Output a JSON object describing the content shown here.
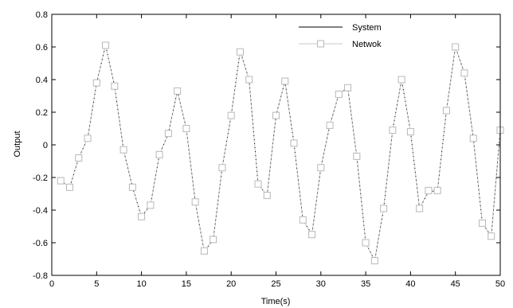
{
  "chart_data": {
    "type": "line",
    "xlabel": "Time(s)",
    "ylabel": "Output",
    "xlim": [
      0,
      50
    ],
    "ylim": [
      -0.8,
      0.8
    ],
    "xticks": [
      "0",
      "5",
      "10",
      "15",
      "20",
      "25",
      "30",
      "35",
      "40",
      "45",
      "50"
    ],
    "yticks": [
      "-0.8",
      "-0.6",
      "-0.4",
      "-0.2",
      "0",
      "0.2",
      "0.4",
      "0.6",
      "0.8"
    ],
    "grid": false,
    "legend_position": "top-right",
    "legend": [
      "System",
      "Netwok"
    ],
    "colors": {
      "system": "#000000",
      "network": "#c8c8c8",
      "marker": "#b8b8b8"
    },
    "x": [
      1,
      2,
      3,
      4,
      5,
      6,
      7,
      8,
      9,
      10,
      11,
      12,
      13,
      14,
      15,
      16,
      17,
      18,
      19,
      20,
      21,
      22,
      23,
      24,
      25,
      26,
      27,
      28,
      29,
      30,
      31,
      32,
      33,
      34,
      35,
      36,
      37,
      38,
      39,
      40,
      41,
      42,
      43,
      44,
      45,
      46,
      47,
      48,
      49,
      50
    ],
    "series": [
      {
        "name": "System",
        "style": "dotted",
        "values": [
          -0.22,
          -0.26,
          -0.08,
          0.04,
          0.38,
          0.61,
          0.36,
          -0.03,
          -0.26,
          -0.44,
          -0.37,
          -0.06,
          0.07,
          0.33,
          0.1,
          -0.35,
          -0.66,
          -0.58,
          -0.14,
          0.18,
          0.58,
          0.4,
          -0.24,
          -0.31,
          0.18,
          0.39,
          0.01,
          -0.46,
          -0.55,
          -0.14,
          0.12,
          0.31,
          0.35,
          -0.07,
          -0.6,
          -0.71,
          -0.39,
          0.09,
          0.4,
          0.08,
          -0.39,
          -0.29,
          -0.28,
          0.21,
          0.6,
          0.44,
          0.04,
          -0.48,
          -0.56,
          0.09
        ]
      },
      {
        "name": "Netwok",
        "style": "line-square",
        "values": [
          -0.22,
          -0.26,
          -0.08,
          0.04,
          0.38,
          0.61,
          0.36,
          -0.03,
          -0.26,
          -0.44,
          -0.37,
          -0.06,
          0.07,
          0.33,
          0.1,
          -0.35,
          -0.65,
          -0.58,
          -0.14,
          0.18,
          0.57,
          0.4,
          -0.24,
          -0.31,
          0.18,
          0.39,
          0.01,
          -0.46,
          -0.55,
          -0.14,
          0.12,
          0.31,
          0.35,
          -0.07,
          -0.6,
          -0.71,
          -0.39,
          0.09,
          0.4,
          0.08,
          -0.39,
          -0.28,
          -0.28,
          0.21,
          0.6,
          0.44,
          0.04,
          -0.48,
          -0.56,
          0.09
        ]
      }
    ]
  }
}
